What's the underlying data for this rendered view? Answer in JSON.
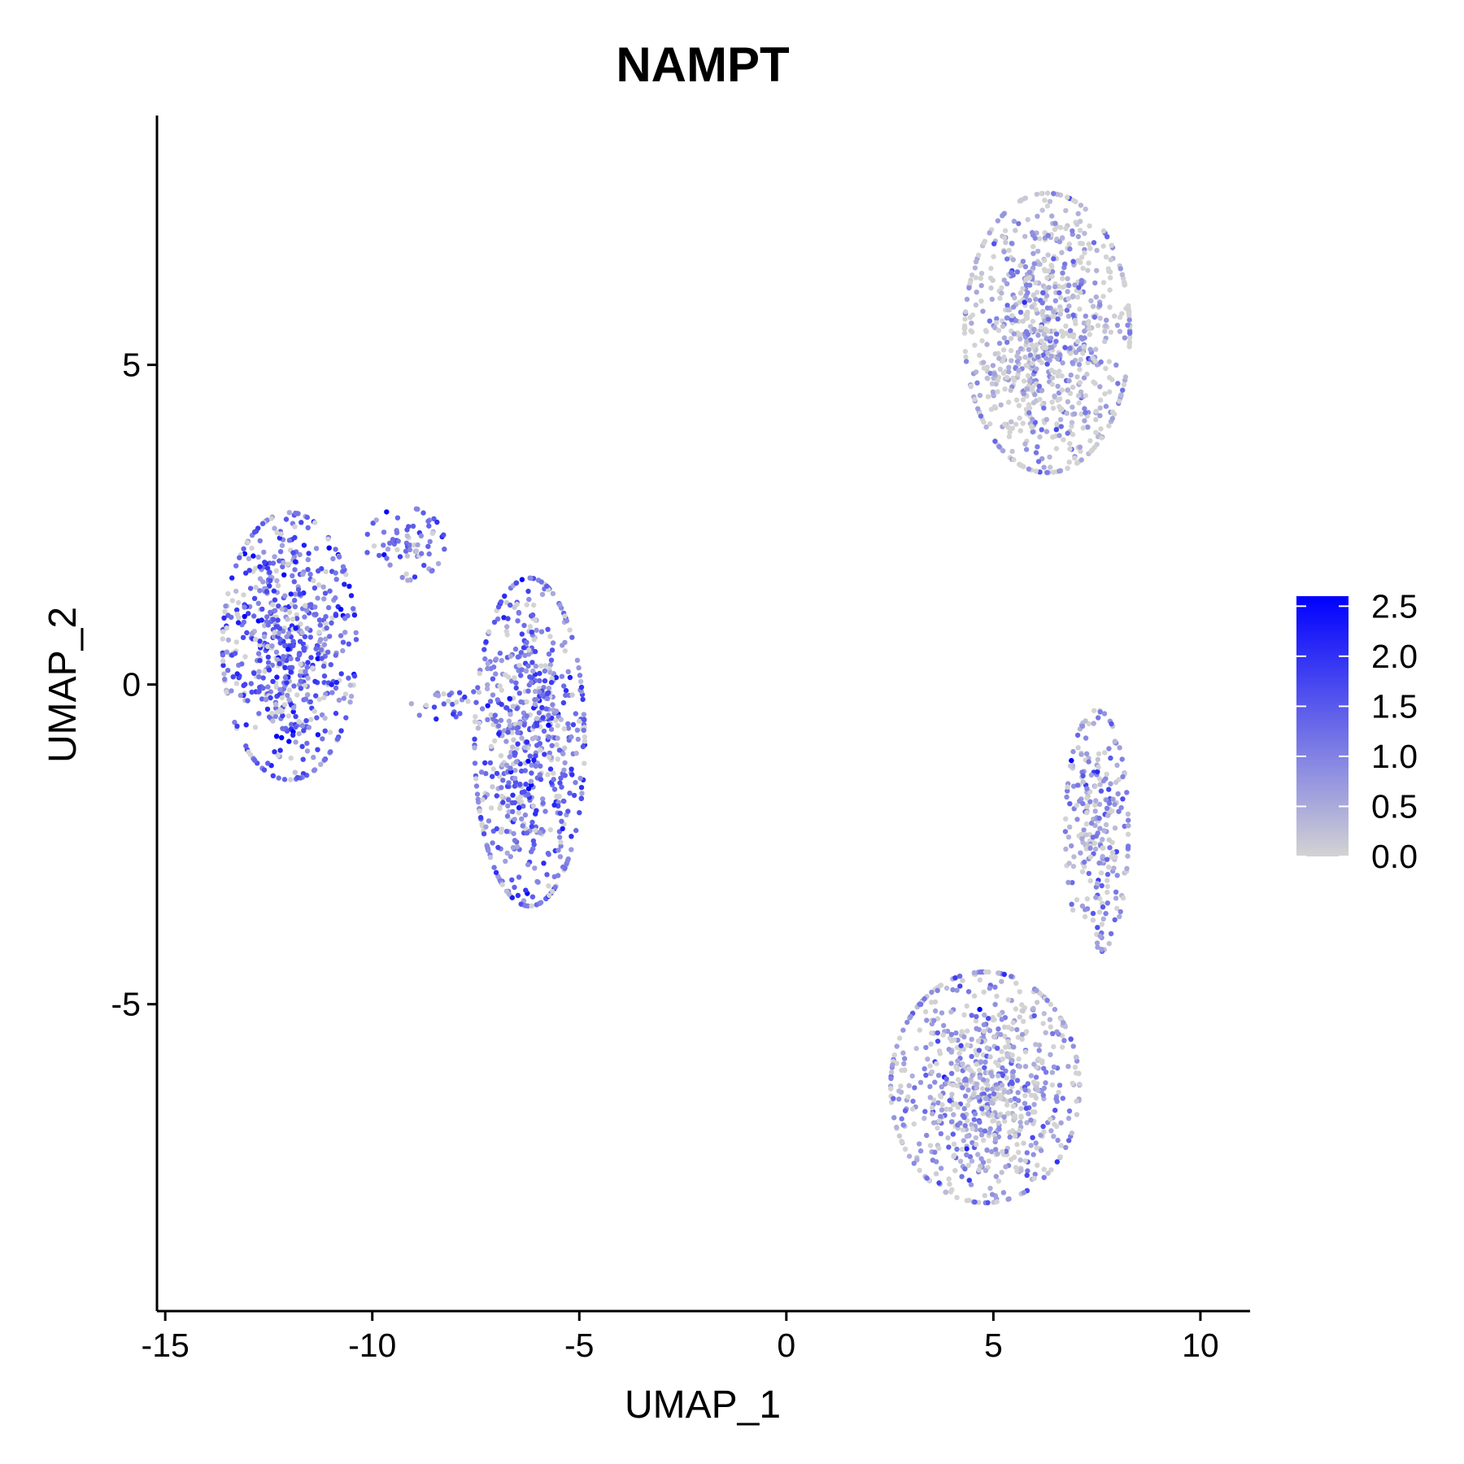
{
  "chart_data": {
    "type": "scatter",
    "title": "NAMPT",
    "xlabel": "UMAP_1",
    "ylabel": "UMAP_2",
    "xlim": [
      -15.2,
      11.2
    ],
    "ylim": [
      -9.8,
      8.9
    ],
    "xticks": [
      -15,
      -10,
      -5,
      0,
      5,
      10
    ],
    "xtick_labels": [
      "-15",
      "-10",
      "-5",
      "0",
      "5",
      "10"
    ],
    "yticks": [
      -5,
      0,
      5
    ],
    "ytick_labels": [
      "-5",
      "0",
      "5"
    ],
    "grid": false,
    "legend": {
      "placement": "right",
      "type": "colorbar",
      "min": 0.0,
      "max": 2.6,
      "ticks": [
        0.0,
        0.5,
        1.0,
        1.5,
        2.0,
        2.5
      ],
      "tick_labels": [
        "0.0",
        "0.5",
        "1.0",
        "1.5",
        "2.0",
        "2.5"
      ],
      "low_color": "#d3d3d3",
      "high_color": "#0000ff"
    },
    "clusters": [
      {
        "center": [
          -12.0,
          0.6
        ],
        "spread": [
          0.85,
          1.1
        ],
        "count": 650,
        "mean_expression": 1.35
      },
      {
        "center": [
          -6.2,
          -0.9
        ],
        "spread": [
          0.7,
          1.35
        ],
        "count": 700,
        "mean_expression": 1.15
      },
      {
        "center": [
          -9.2,
          2.2
        ],
        "spread": [
          0.5,
          0.3
        ],
        "count": 70,
        "mean_expression": 1.0
      },
      {
        "center": [
          -8.2,
          -0.3
        ],
        "spread": [
          0.45,
          0.15
        ],
        "count": 25,
        "mean_expression": 1.3
      },
      {
        "center": [
          6.3,
          5.5
        ],
        "spread": [
          1.05,
          1.15
        ],
        "count": 900,
        "mean_expression": 0.4
      },
      {
        "center": [
          4.8,
          -6.3
        ],
        "spread": [
          1.2,
          0.95
        ],
        "count": 800,
        "mean_expression": 0.6
      },
      {
        "center": [
          7.5,
          -2.3
        ],
        "spread": [
          0.4,
          1.0
        ],
        "count": 260,
        "mean_expression": 0.65
      }
    ]
  }
}
